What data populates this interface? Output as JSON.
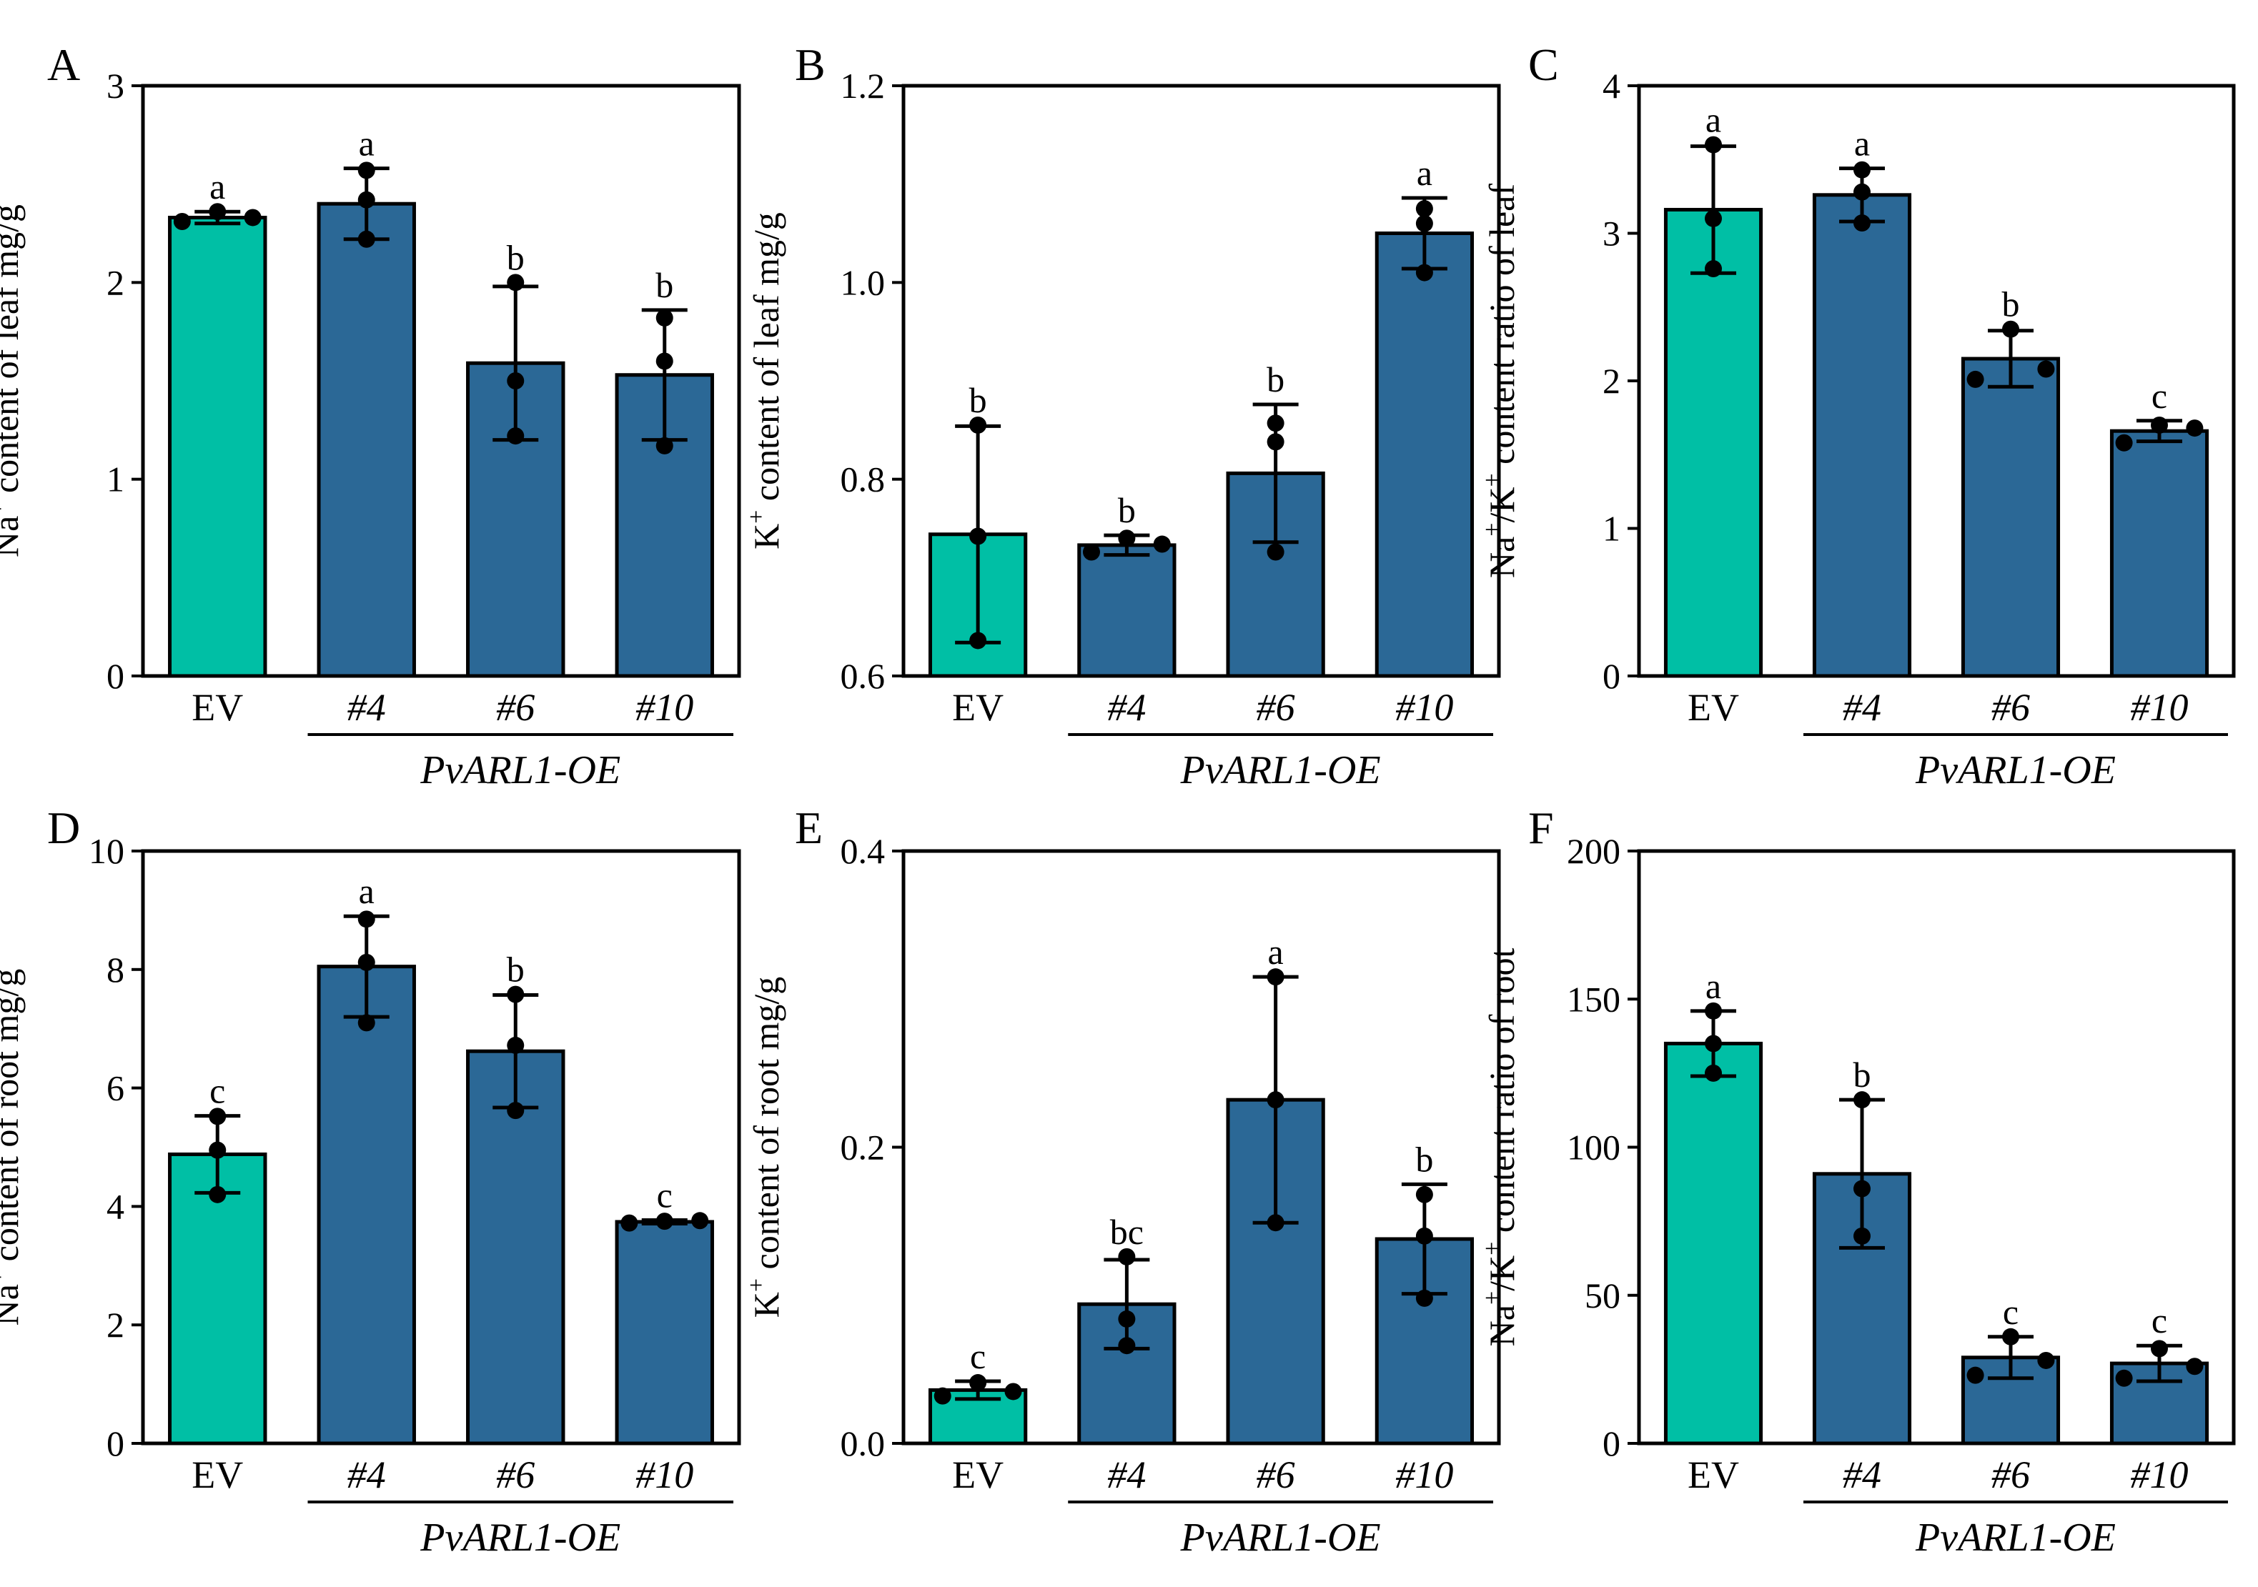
{
  "chart_data": [
    {
      "type": "bar",
      "panel": "A",
      "ylabel": "Na+ content of leaf mg/g",
      "ylabel_parts": {
        "ion": "Na",
        "sup": "+",
        "rest": " content of leaf mg/g"
      },
      "ylim": [
        0,
        3
      ],
      "yticks": [
        "0",
        "1",
        "2",
        "3"
      ],
      "categories": [
        "EV",
        "#4",
        "#6",
        "#10"
      ],
      "group_label": "PvARL1-OE",
      "values": [
        2.33,
        2.4,
        1.59,
        1.53
      ],
      "errors": [
        0.03,
        0.18,
        0.39,
        0.33
      ],
      "points": [
        [
          2.31,
          2.36,
          2.33
        ],
        [
          2.22,
          2.42,
          2.57
        ],
        [
          1.22,
          1.5,
          2.0
        ],
        [
          1.17,
          1.6,
          1.82
        ]
      ],
      "significance": [
        "a",
        "a",
        "b",
        "b"
      ],
      "colors": [
        "#00BFA5",
        "#2B6896"
      ]
    },
    {
      "type": "bar",
      "panel": "B",
      "ylabel": "K+ content of leaf mg/g",
      "ylabel_parts": {
        "ion": "K",
        "sup": "+",
        "rest": " content of leaf mg/g"
      },
      "ylim": [
        0.6,
        1.2
      ],
      "yticks": [
        "0.6",
        "0.8",
        "1.0",
        "1.2"
      ],
      "categories": [
        "EV",
        "#4",
        "#6",
        "#10"
      ],
      "group_label": "PvARL1-OE",
      "values": [
        0.744,
        0.733,
        0.806,
        1.05
      ],
      "errors": [
        0.11,
        0.01,
        0.07,
        0.036
      ],
      "points": [
        [
          0.636,
          0.742,
          0.855
        ],
        [
          0.726,
          0.74,
          0.734
        ],
        [
          0.726,
          0.838,
          0.857
        ],
        [
          1.01,
          1.06,
          1.075
        ]
      ],
      "significance": [
        "b",
        "b",
        "b",
        "a"
      ],
      "colors": [
        "#00BFA5",
        "#2B6896"
      ]
    },
    {
      "type": "bar",
      "panel": "C",
      "ylabel": "Na+/K+ content ratio of leaf",
      "ylabel_parts": {
        "ion": "Na",
        "sup": "+",
        "mid": "/K",
        "sup2": "+",
        "rest": " content ratio of leaf"
      },
      "ylim": [
        0,
        4
      ],
      "yticks": [
        "0",
        "1",
        "2",
        "3",
        "4"
      ],
      "categories": [
        "EV",
        "#4",
        "#6",
        "#10"
      ],
      "group_label": "PvARL1-OE",
      "values": [
        3.16,
        3.26,
        2.15,
        1.66
      ],
      "errors": [
        0.43,
        0.18,
        0.19,
        0.07
      ],
      "points": [
        [
          2.76,
          3.1,
          3.6
        ],
        [
          3.07,
          3.28,
          3.43
        ],
        [
          2.01,
          2.35,
          2.08
        ],
        [
          1.58,
          1.7,
          1.68
        ]
      ],
      "significance": [
        "a",
        "a",
        "b",
        "c"
      ],
      "colors": [
        "#00BFA5",
        "#2B6896"
      ]
    },
    {
      "type": "bar",
      "panel": "D",
      "ylabel": "Na+ content of root mg/g",
      "ylabel_parts": {
        "ion": "Na",
        "sup": "+",
        "rest": " content of root mg/g"
      },
      "ylim": [
        0,
        10
      ],
      "yticks": [
        "0",
        "2",
        "4",
        "6",
        "8",
        "10"
      ],
      "categories": [
        "EV",
        "#4",
        "#6",
        "#10"
      ],
      "group_label": "PvARL1-OE",
      "values": [
        4.88,
        8.05,
        6.62,
        3.74
      ],
      "errors": [
        0.65,
        0.85,
        0.95,
        0.03
      ],
      "points": [
        [
          4.2,
          4.95,
          5.52
        ],
        [
          7.1,
          8.12,
          8.85
        ],
        [
          5.62,
          6.72,
          7.58
        ],
        [
          3.72,
          3.75,
          3.76
        ]
      ],
      "significance": [
        "c",
        "a",
        "b",
        "c"
      ],
      "colors": [
        "#00BFA5",
        "#2B6896"
      ]
    },
    {
      "type": "bar",
      "panel": "E",
      "ylabel": "K+ content of root mg/g",
      "ylabel_parts": {
        "ion": "K",
        "sup": "+",
        "rest": " content of root mg/g"
      },
      "ylim": [
        0.0,
        0.4
      ],
      "yticks": [
        "0.0",
        "0.2",
        "0.4"
      ],
      "categories": [
        "EV",
        "#4",
        "#6",
        "#10"
      ],
      "group_label": "PvARL1-OE",
      "values": [
        0.036,
        0.094,
        0.232,
        0.138
      ],
      "errors": [
        0.006,
        0.03,
        0.083,
        0.037
      ],
      "points": [
        [
          0.032,
          0.041,
          0.035
        ],
        [
          0.066,
          0.084,
          0.126
        ],
        [
          0.149,
          0.232,
          0.315
        ],
        [
          0.098,
          0.14,
          0.168
        ]
      ],
      "significance": [
        "c",
        "bc",
        "a",
        "b"
      ],
      "colors": [
        "#00BFA5",
        "#2B6896"
      ]
    },
    {
      "type": "bar",
      "panel": "F",
      "ylabel": "Na+/K+ content ratio of root",
      "ylabel_parts": {
        "ion": "Na",
        "sup": "+",
        "mid": "/K",
        "sup2": "+",
        "rest": " content ratio of root"
      },
      "ylim": [
        0,
        200
      ],
      "yticks": [
        "0",
        "50",
        "100",
        "150",
        "200"
      ],
      "categories": [
        "EV",
        "#4",
        "#6",
        "#10"
      ],
      "group_label": "PvARL1-OE",
      "values": [
        135,
        91,
        29,
        27
      ],
      "errors": [
        11,
        25,
        7,
        6
      ],
      "points": [
        [
          125,
          135,
          146
        ],
        [
          70,
          86,
          116
        ],
        [
          23,
          36,
          28
        ],
        [
          22,
          32,
          26
        ]
      ],
      "significance": [
        "a",
        "b",
        "c",
        "c"
      ],
      "colors": [
        "#00BFA5",
        "#2B6896"
      ]
    }
  ]
}
